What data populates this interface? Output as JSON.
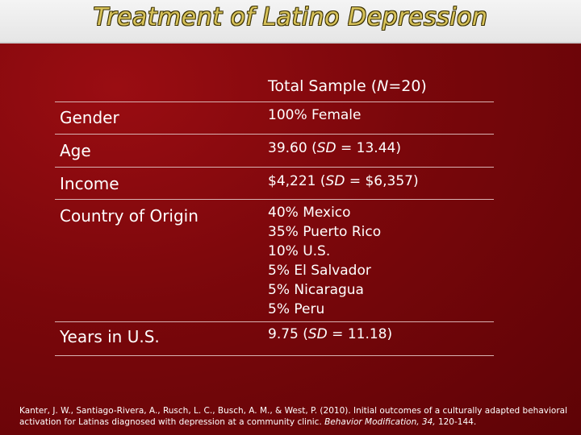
{
  "title": "Treatment of Latino Depression",
  "table": {
    "header_prefix": "Total Sample (",
    "header_n": "N",
    "header_suffix": "=20)",
    "rows": {
      "gender": {
        "label": "Gender",
        "value": "100% Female"
      },
      "age": {
        "label": "Age",
        "value_prefix": "39.60  (",
        "sd": "SD",
        "value_suffix": " = 13.44)"
      },
      "income": {
        "label": "Income",
        "value_prefix": "$4,221 (",
        "sd": "SD",
        "value_suffix": " = $6,357)"
      },
      "country": {
        "label": "Country of Origin",
        "values": [
          "40% Mexico",
          "35% Puerto Rico",
          "10% U.S.",
          "5% El Salvador",
          "5% Nicaragua",
          "5% Peru"
        ]
      },
      "years": {
        "label": "Years in U.S.",
        "value_prefix": "9.75  (",
        "sd": "SD",
        "value_suffix": " = 11.18)"
      }
    }
  },
  "citation": {
    "text": "Kanter, J. W., Santiago-Rivera, A., Rusch, L. C., Busch, A. M., & West, P. (2010). Initial outcomes of a culturally adapted behavioral activation for Latinas diagnosed with depression at a community clinic. ",
    "journal": "Behavior Modification, 34,",
    "pages": " 120-144."
  }
}
